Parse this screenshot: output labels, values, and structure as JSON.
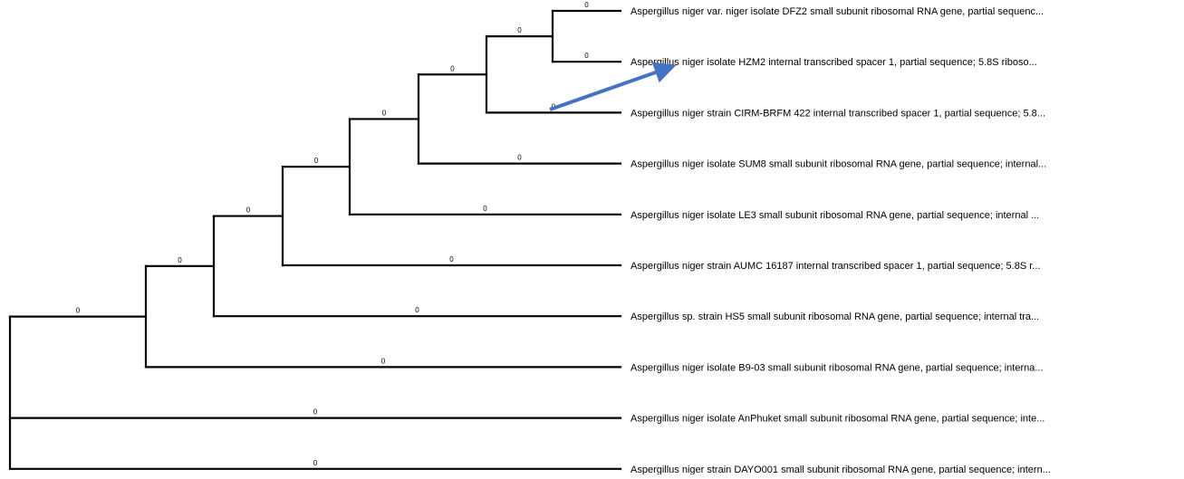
{
  "tree": {
    "line_color": "#000000",
    "arrow_color": "#4472C4",
    "branch_length_label": "0",
    "taxa": [
      "Aspergillus niger var. niger isolate DFZ2 small subunit ribosomal RNA gene, partial sequenc...",
      "Aspergillus niger isolate HZM2 internal transcribed spacer 1, partial sequence; 5.8S riboso...",
      "Aspergillus niger strain CIRM-BRFM 422 internal transcribed spacer 1, partial sequence; 5.8...",
      "Aspergillus niger isolate SUM8 small subunit ribosomal RNA gene, partial sequence; internal...",
      "Aspergillus niger isolate LE3 small subunit ribosomal RNA gene, partial sequence; internal ...",
      "Aspergillus niger strain AUMC 16187 internal transcribed spacer 1, partial sequence; 5.8S r...",
      "Aspergillus sp. strain HS5 small subunit ribosomal RNA gene, partial sequence; internal tra...",
      "Aspergillus niger isolate B9-03 small subunit ribosomal RNA gene, partial sequence; interna...",
      "Aspergillus niger isolate AnPhuket small subunit ribosomal RNA gene, partial sequence; inte...",
      "Aspergillus niger strain DAYO001 small subunit ribosomal RNA gene, partial sequence; intern..."
    ],
    "newick": "(((((((((DFZ2:0,HZM2:0):0,CIRM-BRFM_422:0):0,SUM8:0):0,LE3:0):0,AUMC_16187:0):0,HS5:0):0,B9-03:0):0,AnPhuket:0,DAYO001:0);"
  }
}
